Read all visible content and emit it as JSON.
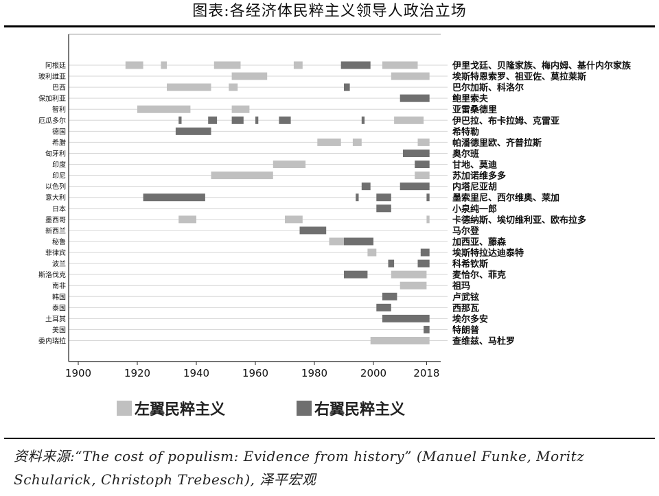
{
  "title": "图表:各经济体民粹主义领导人政治立场",
  "source_note": "资料来源:“The cost of populism: Evidence from history” (Manuel Funke, Moritz Schularick, Christoph Trebesch), 泽平宏观",
  "colors": {
    "left": "#c0c0c0",
    "right": "#6f6f6f",
    "gridline": "#d6d6d6"
  },
  "chart_data": {
    "type": "bar",
    "subtype": "timeline-range",
    "xlim": [
      1900,
      2020
    ],
    "xticks": [
      "1900",
      "1920",
      "1940",
      "1960",
      "1980",
      "2000",
      "2018"
    ],
    "xtick_values": [
      1900,
      1920,
      1940,
      1960,
      1980,
      2000,
      2018
    ],
    "legend": [
      {
        "key": "left",
        "label": "左翼民粹主义"
      },
      {
        "key": "right",
        "label": "右翼民粹主义"
      }
    ],
    "legend_position": "bottom",
    "rows": [
      {
        "country": "阿根廷",
        "leaders": "伊里戈廷、贝隆家族、梅内姆、基什内尔家族",
        "spans": [
          [
            1916,
            1922,
            "left"
          ],
          [
            1928,
            1930,
            "left"
          ],
          [
            1946,
            1955,
            "left"
          ],
          [
            1973,
            1976,
            "left"
          ],
          [
            1989,
            1999,
            "right"
          ],
          [
            2003,
            2015,
            "left"
          ]
        ]
      },
      {
        "country": "玻利维亚",
        "leaders": "埃斯特恩索罗、祖亚佐、莫拉莱斯",
        "spans": [
          [
            1952,
            1964,
            "left"
          ],
          [
            2006,
            2019,
            "left"
          ]
        ]
      },
      {
        "country": "巴西",
        "leaders": "巴尔加斯、科洛尔",
        "spans": [
          [
            1930,
            1945,
            "left"
          ],
          [
            1951,
            1954,
            "left"
          ],
          [
            1990,
            1992,
            "right"
          ]
        ]
      },
      {
        "country": "保加利亚",
        "leaders": "鲍里索夫",
        "spans": [
          [
            2009,
            2019,
            "right"
          ]
        ]
      },
      {
        "country": "智利",
        "leaders": "亚雷桑德里",
        "spans": [
          [
            1920,
            1938,
            "left"
          ],
          [
            1952,
            1958,
            "left"
          ]
        ]
      },
      {
        "country": "厄瓜多尔",
        "leaders": "伊巴拉、布卡拉姆、克雷亚",
        "spans": [
          [
            1934,
            1935,
            "right"
          ],
          [
            1944,
            1947,
            "right"
          ],
          [
            1952,
            1956,
            "right"
          ],
          [
            1960,
            1961,
            "right"
          ],
          [
            1968,
            1972,
            "right"
          ],
          [
            1996,
            1997,
            "right"
          ],
          [
            2007,
            2017,
            "left"
          ]
        ]
      },
      {
        "country": "德国",
        "leaders": "希特勒",
        "spans": [
          [
            1933,
            1945,
            "right"
          ]
        ]
      },
      {
        "country": "希腊",
        "leaders": "帕潘德里欧、齐普拉斯",
        "spans": [
          [
            1981,
            1989,
            "left"
          ],
          [
            1993,
            1996,
            "left"
          ],
          [
            2015,
            2019,
            "left"
          ]
        ]
      },
      {
        "country": "匈牙利",
        "leaders": "奥尔班",
        "spans": [
          [
            2010,
            2019,
            "right"
          ]
        ]
      },
      {
        "country": "印度",
        "leaders": "甘地、莫迪",
        "spans": [
          [
            1966,
            1977,
            "left"
          ],
          [
            2014,
            2019,
            "right"
          ]
        ]
      },
      {
        "country": "印尼",
        "leaders": "苏加诺维多多",
        "spans": [
          [
            1945,
            1966,
            "left"
          ],
          [
            2014,
            2019,
            "left"
          ]
        ]
      },
      {
        "country": "以色列",
        "leaders": "内塔尼亚胡",
        "spans": [
          [
            1996,
            1999,
            "right"
          ],
          [
            2009,
            2019,
            "right"
          ]
        ]
      },
      {
        "country": "意大利",
        "leaders": "墨索里尼、西尔维奥、莱加",
        "spans": [
          [
            1922,
            1943,
            "right"
          ],
          [
            1994,
            1995,
            "right"
          ],
          [
            2001,
            2006,
            "right"
          ],
          [
            2018,
            2019,
            "right"
          ]
        ]
      },
      {
        "country": "日本",
        "leaders": "小泉纯一郎",
        "spans": [
          [
            2001,
            2006,
            "right"
          ]
        ]
      },
      {
        "country": "墨西哥",
        "leaders": "卡德纳斯、埃切维利亚、欧布拉多",
        "spans": [
          [
            1934,
            1940,
            "left"
          ],
          [
            1970,
            1976,
            "left"
          ],
          [
            2018,
            2019,
            "left"
          ]
        ]
      },
      {
        "country": "新西兰",
        "leaders": "马尔登",
        "spans": [
          [
            1975,
            1984,
            "right"
          ]
        ]
      },
      {
        "country": "秘鲁",
        "leaders": "加西亚、藤森",
        "spans": [
          [
            1985,
            1990,
            "left"
          ],
          [
            1990,
            2000,
            "right"
          ]
        ]
      },
      {
        "country": "菲律宾",
        "leaders": "埃斯特拉达迪泰特",
        "spans": [
          [
            1998,
            2001,
            "left"
          ],
          [
            2016,
            2019,
            "right"
          ]
        ]
      },
      {
        "country": "波兰",
        "leaders": "科希钦斯",
        "spans": [
          [
            2005,
            2007,
            "right"
          ],
          [
            2015,
            2019,
            "right"
          ]
        ]
      },
      {
        "country": "斯洛伐克",
        "leaders": "麦恰尔、菲克",
        "spans": [
          [
            1990,
            1998,
            "right"
          ],
          [
            2006,
            2018,
            "left"
          ]
        ]
      },
      {
        "country": "南非",
        "leaders": "祖玛",
        "spans": [
          [
            2009,
            2018,
            "left"
          ]
        ]
      },
      {
        "country": "韩国",
        "leaders": "卢武铉",
        "spans": [
          [
            2003,
            2008,
            "right"
          ]
        ]
      },
      {
        "country": "泰国",
        "leaders": "西那瓦",
        "spans": [
          [
            2001,
            2006,
            "right"
          ]
        ]
      },
      {
        "country": "土耳其",
        "leaders": "埃尔多安",
        "spans": [
          [
            2003,
            2019,
            "right"
          ]
        ]
      },
      {
        "country": "美国",
        "leaders": "特朗普",
        "spans": [
          [
            2017,
            2019,
            "right"
          ]
        ]
      },
      {
        "country": "委内瑞拉",
        "leaders": "查维兹、马杜罗",
        "spans": [
          [
            1999,
            2019,
            "left"
          ]
        ]
      }
    ]
  }
}
